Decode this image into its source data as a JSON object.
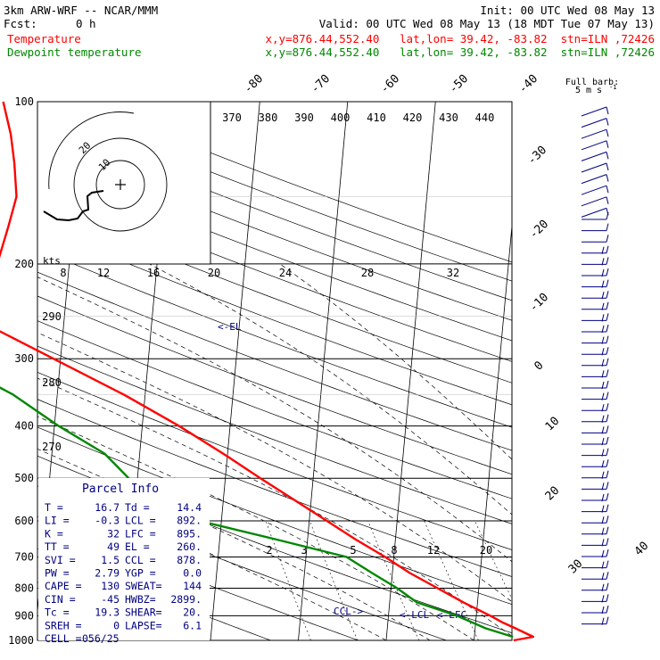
{
  "header": {
    "model": "3km ARW-WRF -- NCAR/MMM",
    "init": "Init: 00 UTC Wed 08 May 13",
    "fcst_label": "Fcst:",
    "fcst_value": "0 h",
    "valid": "Valid: 00 UTC Wed 08 May 13 (18 MDT Tue 07 May 13)"
  },
  "legend": [
    {
      "name": "Temperature",
      "color": "#ff0000",
      "info": "x,y=876.44,552.40   lat,lon= 39.42, -83.82  stn=ILN ,72426"
    },
    {
      "name": "Dewpoint temperature",
      "color": "#008800",
      "info": "x,y=876.44,552.40   lat,lon= 39.42, -83.82  stn=ILN ,72426"
    }
  ],
  "barb_legend": {
    "title": "Full barb:",
    "value": "5 m s",
    "exp": "-1"
  },
  "colors": {
    "temperature": "#ff0000",
    "dewpoint": "#008800",
    "hodograph": "#000000",
    "barbs": "#000080",
    "parcel": "#000080",
    "isobar": "#000000"
  },
  "chart_data": {
    "type": "line",
    "diagram": "skew-T log-p",
    "pressure_levels": [
      100,
      200,
      300,
      400,
      500,
      600,
      700,
      800,
      900,
      1000
    ],
    "isotherm_labels": [
      "-80",
      "-70",
      "-60",
      "-50",
      "-40",
      "-30",
      "-20",
      "-10",
      "0",
      "10",
      "20",
      "30",
      "40"
    ],
    "theta_labels": [
      "370",
      "380",
      "390",
      "400",
      "410",
      "420",
      "430",
      "440"
    ],
    "theta_side_labels": [
      "290",
      "280",
      "270"
    ],
    "mixing_ratio_labels": [
      "2",
      "3",
      "5",
      "8",
      "12",
      "20"
    ],
    "series": [
      {
        "name": "Temperature",
        "points": [
          [
            1000,
            14.5
          ],
          [
            985,
            16.7
          ],
          [
            950,
            14.6
          ],
          [
            925,
            13
          ],
          [
            900,
            11.6
          ],
          [
            850,
            8.4
          ],
          [
            800,
            5.3
          ],
          [
            750,
            2
          ],
          [
            700,
            -1
          ],
          [
            650,
            -4.5
          ],
          [
            600,
            -8
          ],
          [
            550,
            -11.8
          ],
          [
            500,
            -16
          ],
          [
            450,
            -20.5
          ],
          [
            400,
            -25.8
          ],
          [
            350,
            -32.4
          ],
          [
            300,
            -40.8
          ],
          [
            260,
            -48.6
          ],
          [
            250,
            -49
          ],
          [
            230,
            -48
          ],
          [
            200,
            -48.2
          ],
          [
            170,
            -47.3
          ],
          [
            150,
            -46.7
          ],
          [
            130,
            -47.3
          ],
          [
            115,
            -48
          ],
          [
            100,
            -49.2
          ]
        ]
      },
      {
        "name": "Dewpoint temperature",
        "points": [
          [
            985,
            14.4
          ],
          [
            950,
            11.2
          ],
          [
            900,
            7.8
          ],
          [
            850,
            3.1
          ],
          [
            800,
            0.7
          ],
          [
            750,
            -2.3
          ],
          [
            700,
            -5.4
          ],
          [
            650,
            -13.5
          ],
          [
            600,
            -22.5
          ],
          [
            550,
            -27
          ],
          [
            500,
            -31
          ],
          [
            450,
            -34
          ],
          [
            400,
            -39.5
          ],
          [
            350,
            -45
          ],
          [
            300,
            -53
          ],
          [
            260,
            -60.3
          ],
          [
            240,
            -61.5
          ],
          [
            220,
            -62
          ],
          [
            200,
            -63.5
          ],
          [
            180,
            -64.5
          ],
          [
            160,
            -67.5
          ],
          [
            140,
            -70
          ],
          [
            120,
            -72.7
          ],
          [
            100,
            -73.4
          ]
        ]
      }
    ],
    "annotations": [
      "<-EL",
      "CCL->",
      "<-LCL",
      "<-LFC"
    ]
  },
  "hodograph": {
    "speed_labels": [
      "8",
      "12",
      "16",
      "20",
      "24",
      "28",
      "32"
    ],
    "rings": [
      "20",
      "10"
    ],
    "axis_label": "kts"
  },
  "parcel_info": {
    "title": "Parcel Info",
    "rows": [
      [
        "T   =",
        "16.7",
        "Td  =",
        "14.4"
      ],
      [
        "LI  =",
        "-0.3",
        "LCL =",
        "892."
      ],
      [
        "K   =",
        "32",
        "LFC =",
        "895."
      ],
      [
        "TT  =",
        "49",
        "EL  =",
        "260."
      ],
      [
        "SVI =",
        "1.5",
        "CCL =",
        "878."
      ],
      [
        "PW  =",
        "2.79",
        "YGP =",
        "0.0"
      ],
      [
        "CAPE =",
        "130",
        "SWEAT=",
        "144"
      ],
      [
        "CIN =",
        "-45",
        "HWBZ=",
        "2899."
      ],
      [
        "Tc  =",
        "19.3",
        "SHEAR=",
        "20."
      ],
      [
        "SREH =",
        "0",
        "LAPSE=",
        "6.1"
      ],
      [
        "CELL =",
        "056/25",
        "",
        ""
      ]
    ]
  }
}
